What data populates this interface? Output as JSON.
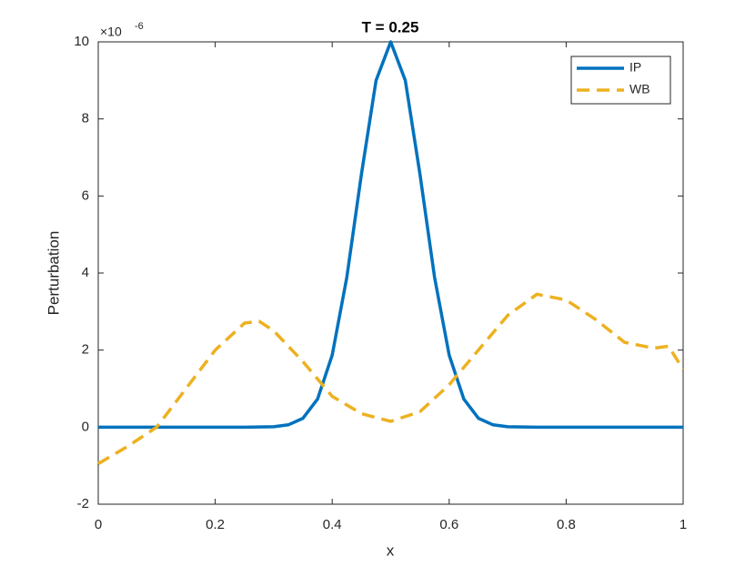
{
  "chart_data": {
    "type": "line",
    "title": "T = 0.25",
    "xlabel": "x",
    "ylabel": "Perturbation",
    "y_multiplier": {
      "base": "×10",
      "exponent": "-6"
    },
    "xlim": [
      0,
      1
    ],
    "ylim": [
      -2,
      10
    ],
    "xticks": [
      0,
      0.2,
      0.4,
      0.6,
      0.8,
      1
    ],
    "yticks": [
      -2,
      0,
      2,
      4,
      6,
      8,
      10
    ],
    "legend": "upper right",
    "grid": false,
    "series": [
      {
        "name": "IP",
        "color": "#0072bd",
        "dash": "solid",
        "x": [
          0,
          0.05,
          0.1,
          0.15,
          0.2,
          0.25,
          0.3,
          0.325,
          0.35,
          0.375,
          0.4,
          0.425,
          0.45,
          0.475,
          0.5,
          0.525,
          0.55,
          0.575,
          0.6,
          0.625,
          0.65,
          0.675,
          0.7,
          0.75,
          0.8,
          0.85,
          0.9,
          0.95,
          1
        ],
        "values": [
          0,
          0,
          0,
          0,
          0,
          0,
          0.01,
          0.06,
          0.23,
          0.73,
          1.87,
          3.89,
          6.57,
          9.0,
          10,
          9.0,
          6.57,
          3.89,
          1.87,
          0.73,
          0.23,
          0.06,
          0.01,
          0,
          0,
          0,
          0,
          0,
          0
        ]
      },
      {
        "name": "WB",
        "color": "#edb120",
        "dash": "dashed",
        "x": [
          0,
          0.05,
          0.1,
          0.15,
          0.2,
          0.25,
          0.275,
          0.3,
          0.35,
          0.4,
          0.45,
          0.5,
          0.55,
          0.6,
          0.65,
          0.7,
          0.75,
          0.8,
          0.85,
          0.9,
          0.95,
          0.975,
          1
        ],
        "values": [
          -0.95,
          -0.5,
          0.0,
          1.0,
          2.0,
          2.7,
          2.75,
          2.5,
          1.7,
          0.8,
          0.35,
          0.15,
          0.4,
          1.1,
          2.0,
          2.9,
          3.45,
          3.3,
          2.8,
          2.2,
          2.05,
          2.1,
          1.5
        ]
      }
    ]
  }
}
